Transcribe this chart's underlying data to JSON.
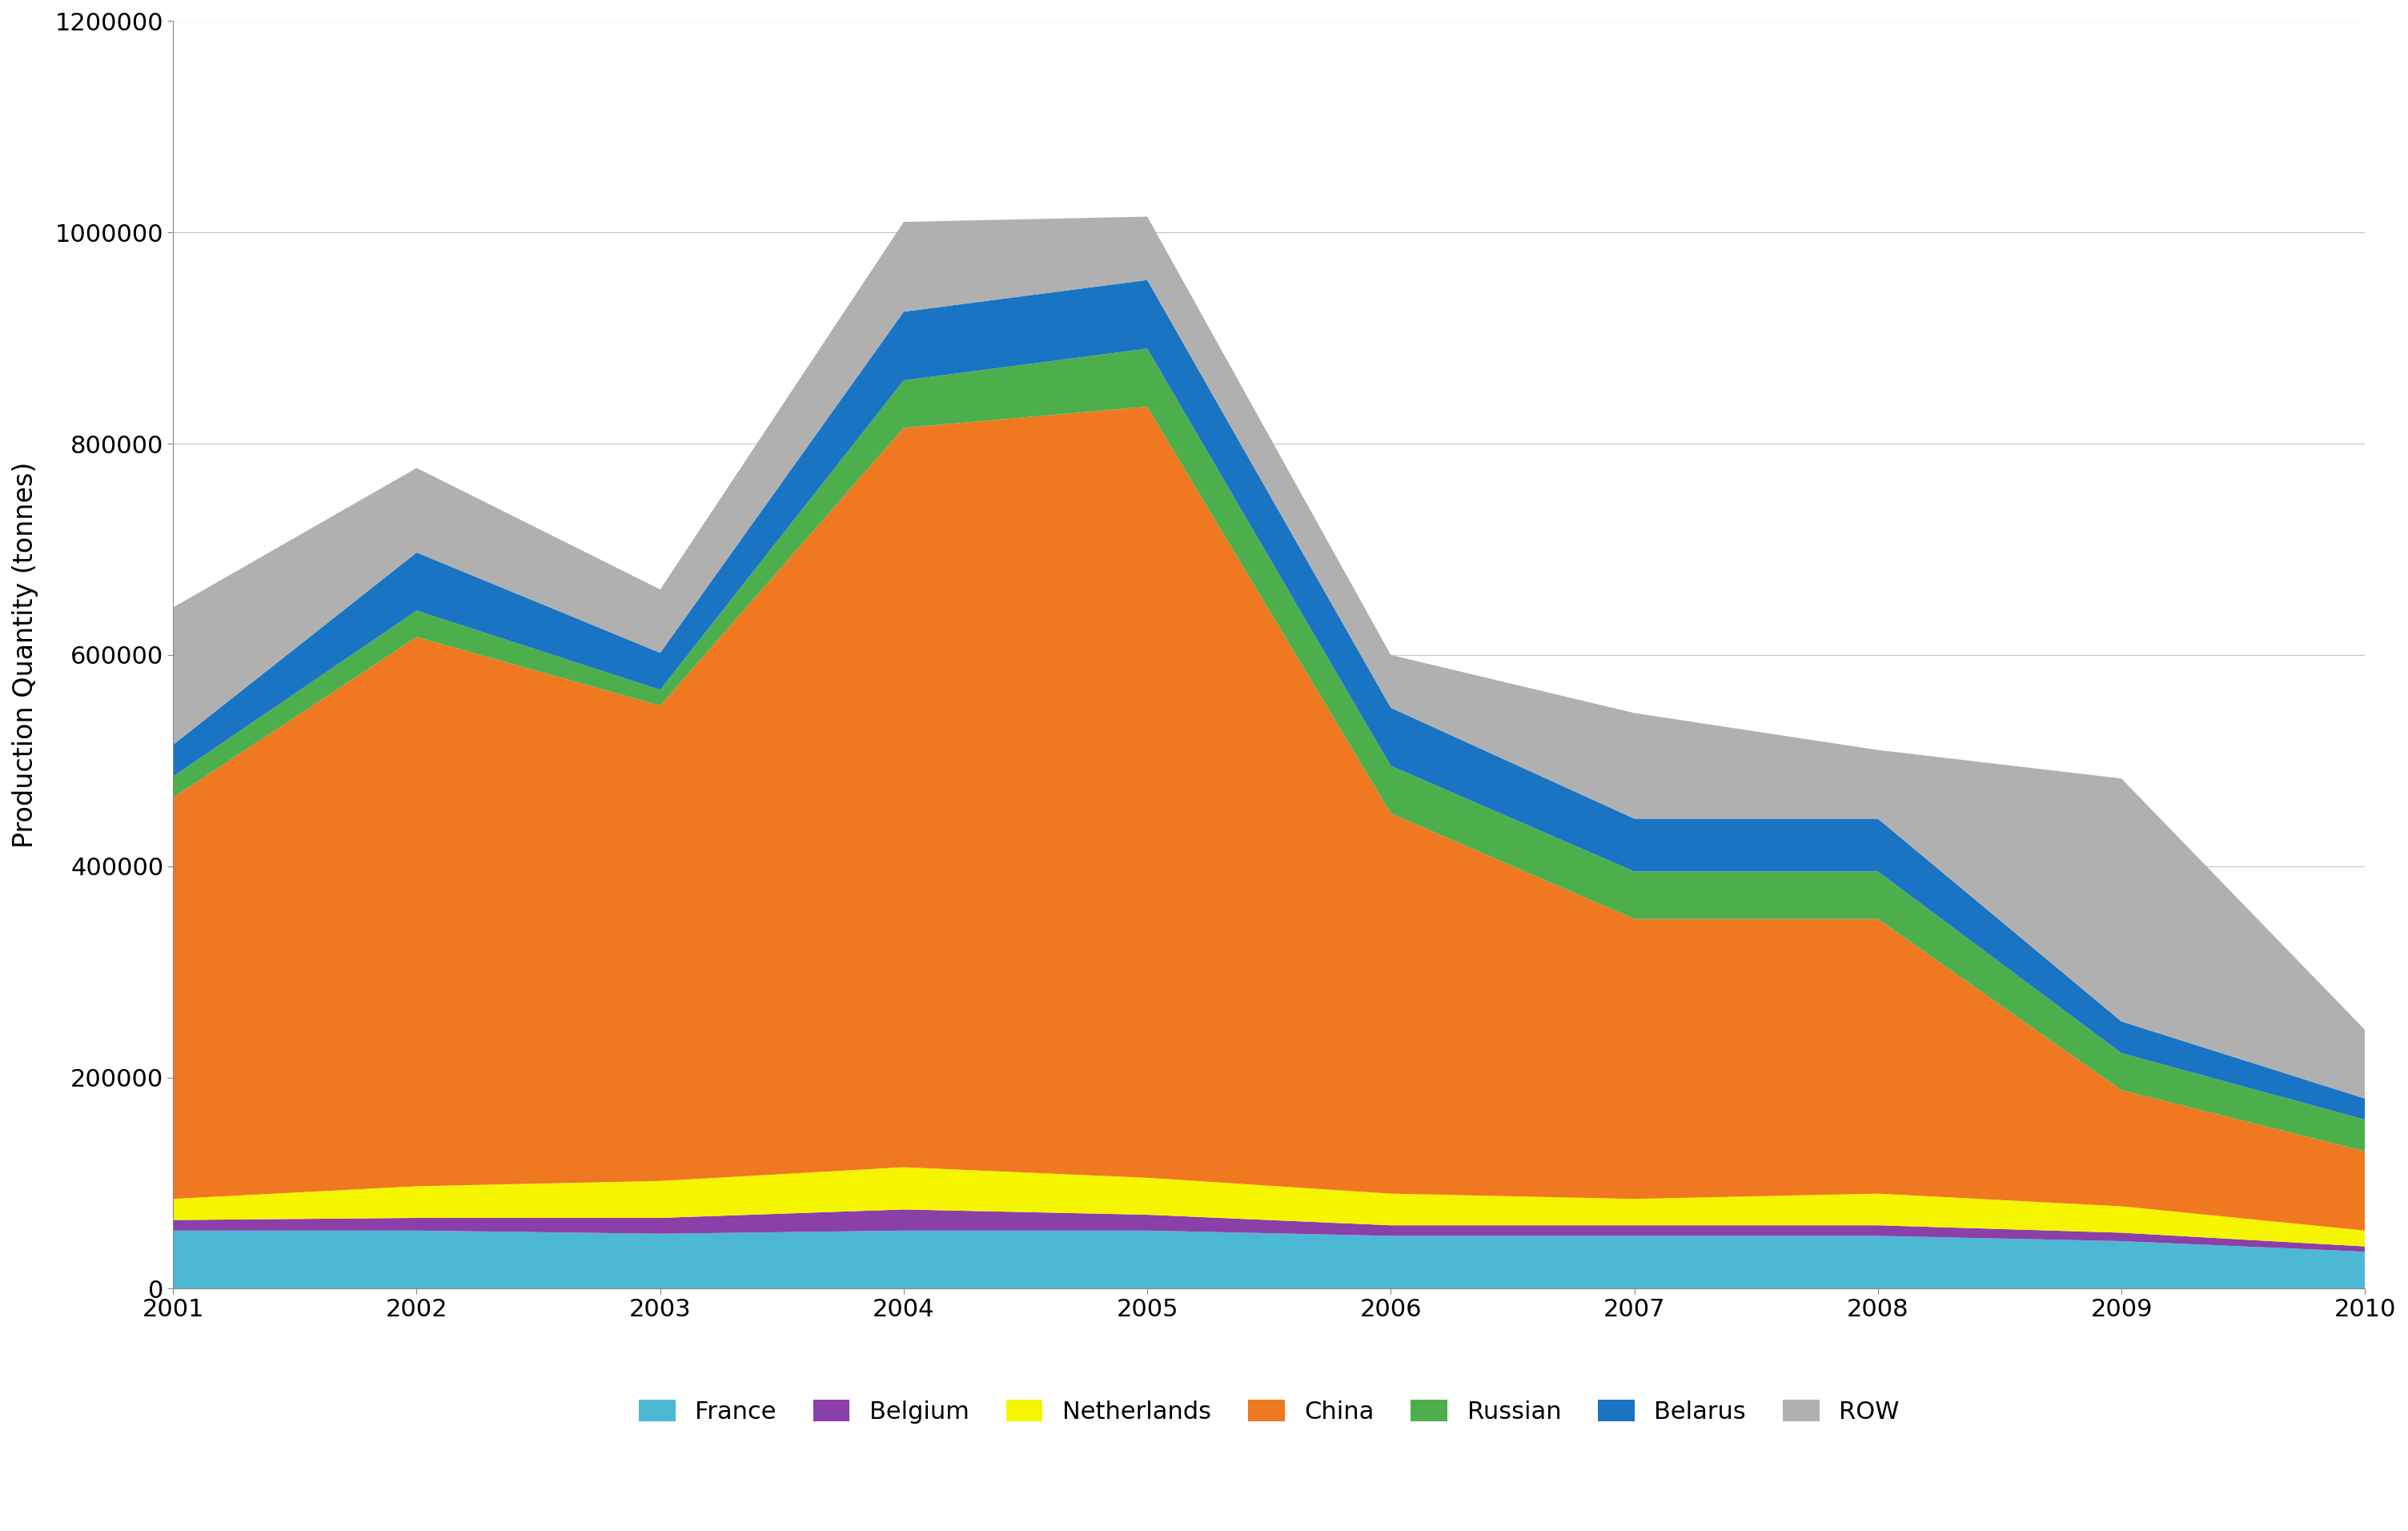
{
  "years": [
    2001,
    2002,
    2003,
    2004,
    2005,
    2006,
    2007,
    2008,
    2009,
    2010
  ],
  "france": [
    55000,
    55000,
    52000,
    55000,
    55000,
    50000,
    50000,
    50000,
    45000,
    35000
  ],
  "belgium": [
    10000,
    12000,
    15000,
    20000,
    15000,
    10000,
    10000,
    10000,
    8000,
    5000
  ],
  "netherlands": [
    20000,
    30000,
    35000,
    40000,
    35000,
    30000,
    25000,
    30000,
    25000,
    15000
  ],
  "china": [
    380000,
    520000,
    450000,
    700000,
    730000,
    360000,
    265000,
    260000,
    110000,
    75000
  ],
  "russian": [
    20000,
    25000,
    15000,
    45000,
    55000,
    45000,
    45000,
    45000,
    35000,
    30000
  ],
  "belarus": [
    30000,
    55000,
    35000,
    65000,
    65000,
    55000,
    50000,
    50000,
    30000,
    20000
  ],
  "row": [
    130000,
    80000,
    60000,
    85000,
    60000,
    50000,
    100000,
    65000,
    230000,
    65000
  ],
  "colors": {
    "france": "#4db8d4",
    "belgium": "#8b3fa8",
    "netherlands": "#f5f500",
    "china": "#f07820",
    "russian": "#4caf4c",
    "belarus": "#1a74c4",
    "row": "#b0b0b0"
  },
  "ylabel": "Production Quantity (tonnes)",
  "ylim": [
    0,
    1200000
  ],
  "yticks": [
    0,
    200000,
    400000,
    600000,
    800000,
    1000000,
    1200000
  ],
  "xlim": [
    2001,
    2010
  ],
  "background_color": "#ffffff",
  "legend_labels": [
    "France",
    "Belgium",
    "Netherlands",
    "China",
    "Russian",
    "Belarus",
    "ROW"
  ]
}
